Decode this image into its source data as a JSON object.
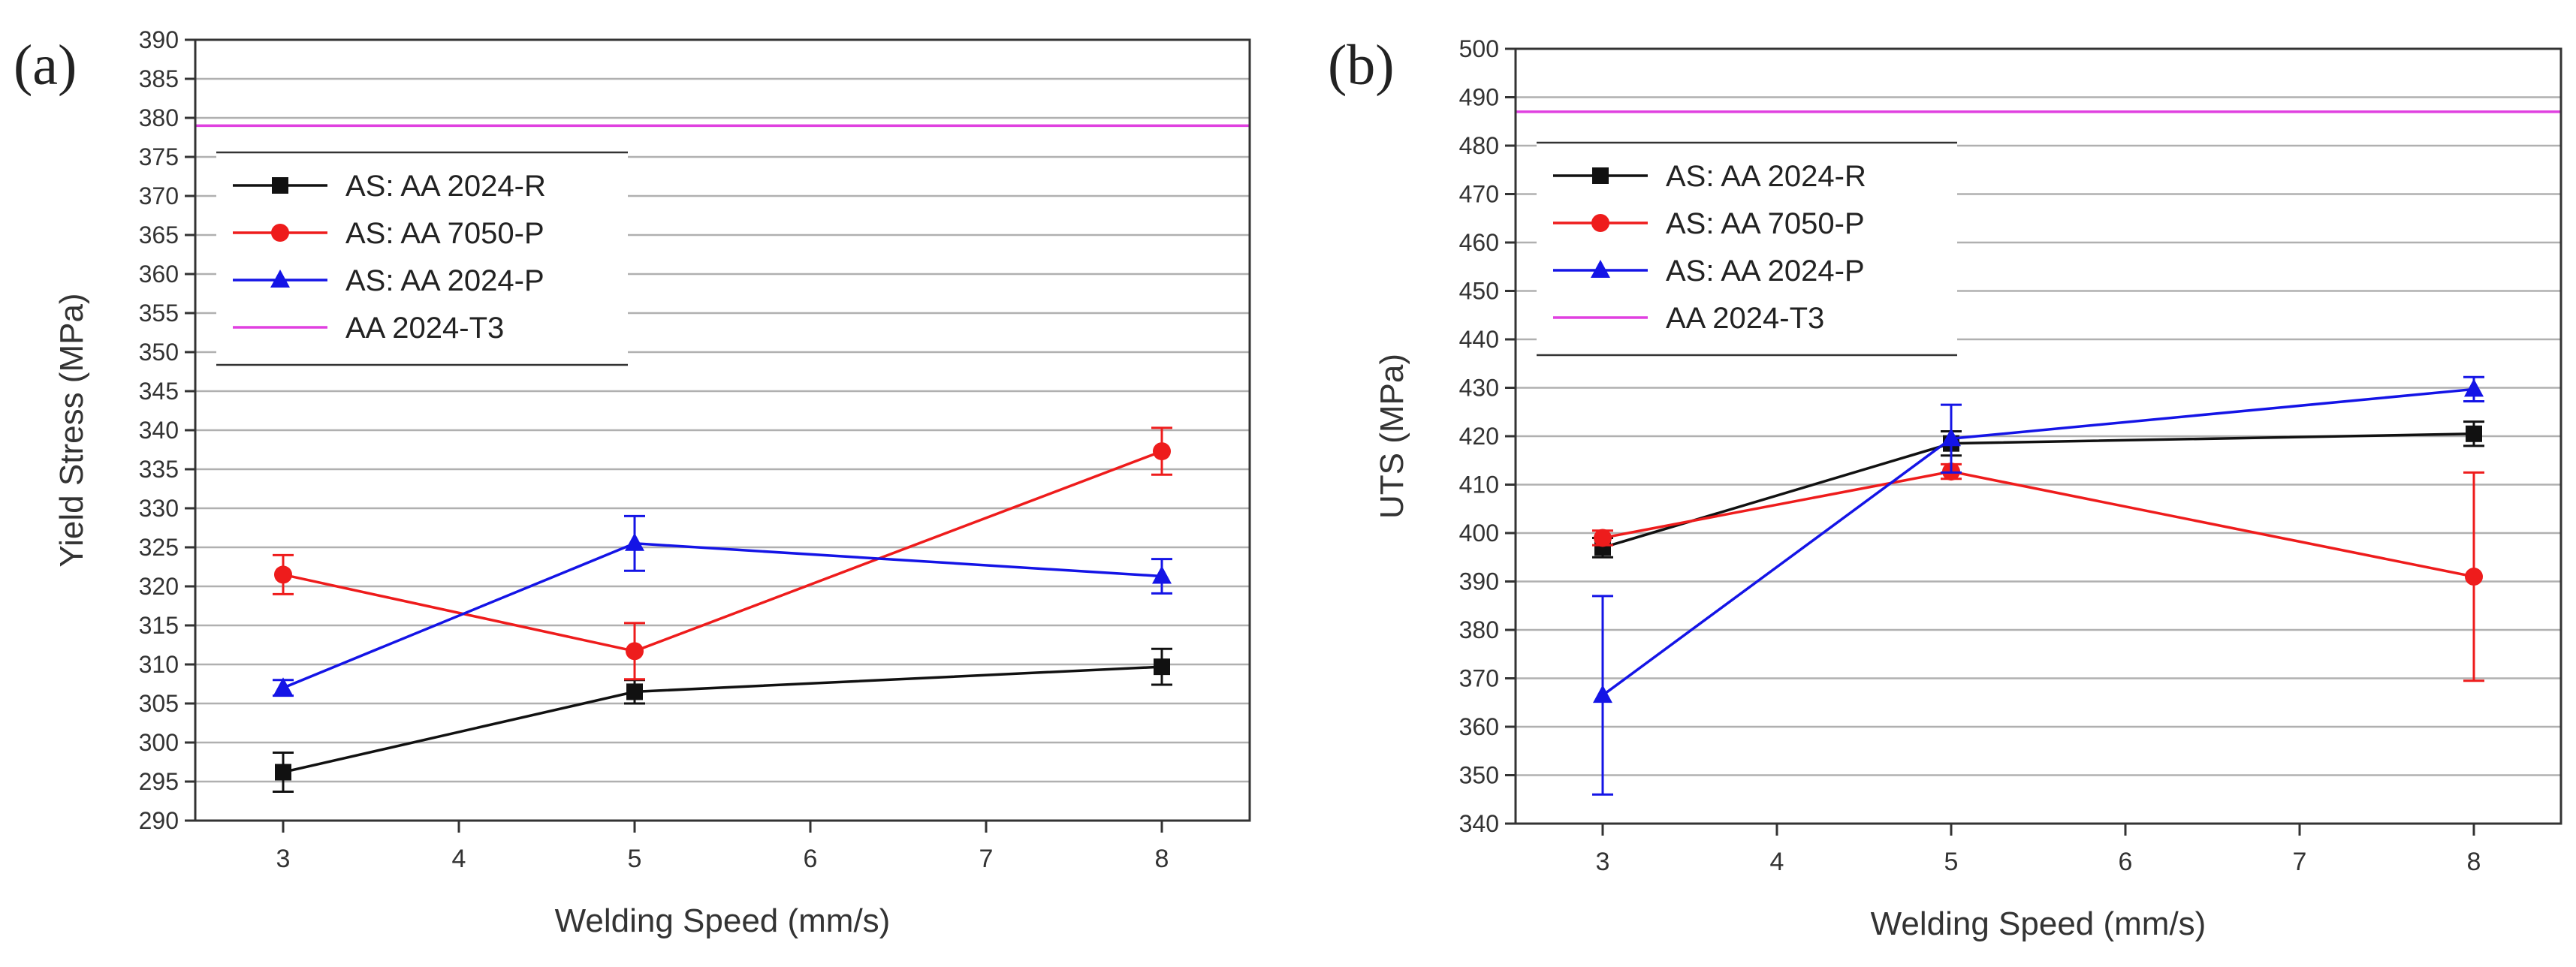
{
  "colors": {
    "black": "#111111",
    "red": "#ee1c1c",
    "blue": "#1414e6",
    "magenta": "#e040e0",
    "grid": "#b0b0b0",
    "axis": "#333333"
  },
  "chart_data": [
    {
      "panel_label": "(a)",
      "type": "line",
      "xlabel": "Welding Speed (mm/s)",
      "ylabel": "Yield Stress (MPa)",
      "xlim": [
        2.5,
        8.5
      ],
      "ylim": [
        290,
        390
      ],
      "xticks": [
        "3",
        "4",
        "5",
        "6",
        "7",
        "8"
      ],
      "yticks": [
        "290",
        "295",
        "300",
        "305",
        "310",
        "315",
        "320",
        "325",
        "330",
        "335",
        "340",
        "345",
        "350",
        "355",
        "360",
        "365",
        "370",
        "375",
        "380",
        "385",
        "390"
      ],
      "grid": "horizontal",
      "legend_position": "top-left",
      "x": [
        3,
        5,
        8
      ],
      "series": [
        {
          "name": "AS: AA 2024-R",
          "color": "#111111",
          "marker": "square",
          "values": [
            296.2,
            306.5,
            309.7
          ],
          "errors": [
            2.5,
            1.5,
            2.3
          ]
        },
        {
          "name": "AS: AA 7050-P",
          "color": "#ee1c1c",
          "marker": "circle",
          "values": [
            321.5,
            311.7,
            337.3
          ],
          "errors": [
            2.5,
            3.6,
            3.0
          ]
        },
        {
          "name": "AS: AA 2024-P",
          "color": "#1414e6",
          "marker": "triangle",
          "values": [
            307.0,
            325.5,
            321.3
          ],
          "errors": [
            1.0,
            3.5,
            2.2
          ]
        }
      ],
      "reference_line": {
        "name": "AA 2024-T3",
        "color": "#e040e0",
        "value": 379
      }
    },
    {
      "panel_label": "(b)",
      "type": "line",
      "xlabel": "Welding Speed (mm/s)",
      "ylabel": "UTS (MPa)",
      "xlim": [
        2.5,
        8.5
      ],
      "ylim": [
        340,
        500
      ],
      "xticks": [
        "3",
        "4",
        "5",
        "6",
        "7",
        "8"
      ],
      "yticks": [
        "340",
        "350",
        "360",
        "370",
        "380",
        "390",
        "400",
        "410",
        "420",
        "430",
        "440",
        "450",
        "460",
        "470",
        "480",
        "490",
        "500"
      ],
      "grid": "horizontal",
      "legend_position": "top-left",
      "x": [
        3,
        5,
        8
      ],
      "series": [
        {
          "name": "AS: AA 2024-R",
          "color": "#111111",
          "marker": "square",
          "values": [
            397.0,
            418.5,
            420.5
          ],
          "errors": [
            2.0,
            2.5,
            2.5
          ]
        },
        {
          "name": "AS: AA 7050-P",
          "color": "#ee1c1c",
          "marker": "circle",
          "values": [
            399.0,
            412.7,
            391.0
          ],
          "errors": [
            1.5,
            1.5,
            21.5
          ]
        },
        {
          "name": "AS: AA 2024-P",
          "color": "#1414e6",
          "marker": "triangle",
          "values": [
            366.5,
            419.5,
            429.7
          ],
          "errors": [
            20.5,
            7.0,
            2.5
          ]
        }
      ],
      "reference_line": {
        "name": "AA 2024-T3",
        "color": "#e040e0",
        "value": 487
      }
    }
  ]
}
